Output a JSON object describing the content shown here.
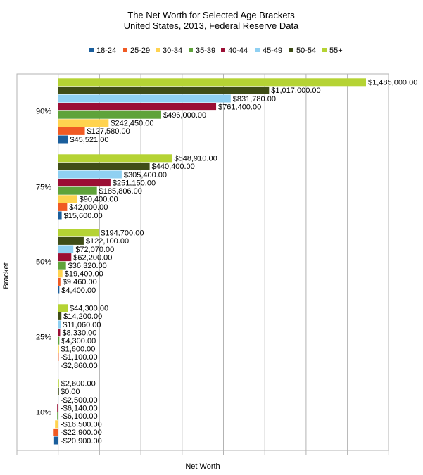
{
  "chart_data": {
    "type": "bar",
    "orientation": "horizontal",
    "title": "The Net Worth for Selected Age Brackets",
    "subtitle": "United States, 2013, Federal Reserve Data",
    "xlabel": "Net Worth",
    "ylabel": "Bracket",
    "legend_position": "top",
    "grid": true,
    "xlim": [
      -300000,
      1500000
    ],
    "categories": [
      "90%",
      "75%",
      "50%",
      "25%",
      "10%"
    ],
    "series": [
      {
        "name": "18-24",
        "color": "#1a5e9c",
        "values": [
          45521,
          15600,
          4400,
          -2860,
          -20900
        ],
        "labels": [
          "$45,521.00",
          "$15,600.00",
          "$4,400.00",
          "-$2,860.00",
          "-$20,900.00"
        ]
      },
      {
        "name": "25-29",
        "color": "#f05a23",
        "values": [
          127580,
          42000,
          9460,
          -1100,
          -22900
        ],
        "labels": [
          "$127,580.00",
          "$42,000.00",
          "$9,460.00",
          "-$1,100.00",
          "-$22,900.00"
        ]
      },
      {
        "name": "30-34",
        "color": "#ffd34f",
        "values": [
          242450,
          90400,
          19400,
          1600,
          -16500
        ],
        "labels": [
          "$242,450.00",
          "$90,400.00",
          "$19,400.00",
          "$1,600.00",
          "-$16,500.00"
        ]
      },
      {
        "name": "35-39",
        "color": "#5fa33a",
        "values": [
          496000,
          185806,
          36320,
          4300,
          -6100
        ],
        "labels": [
          "$496,000.00",
          "$185,806.00",
          "$36,320.00",
          "$4,300.00",
          "-$6,100.00"
        ]
      },
      {
        "name": "40-44",
        "color": "#9b0e34",
        "values": [
          761400,
          251150,
          62200,
          8330,
          -6140
        ],
        "labels": [
          "$761,400.00",
          "$251,150.00",
          "$62,200.00",
          "$8,330.00",
          "-$6,140.00"
        ]
      },
      {
        "name": "45-49",
        "color": "#8fd0f2",
        "values": [
          831780,
          305400,
          72070,
          11060,
          -2500
        ],
        "labels": [
          "$831,780.00",
          "$305,400.00",
          "$72,070.00",
          "$11,060.00",
          "-$2,500.00"
        ]
      },
      {
        "name": "50-54",
        "color": "#3f4d17",
        "values": [
          1017000,
          440400,
          122100,
          14200,
          0
        ],
        "labels": [
          "$1,017,000.00",
          "$440,400.00",
          "$122,100.00",
          "$14,200.00",
          "$0.00"
        ]
      },
      {
        "name": "55+",
        "color": "#b5d334",
        "values": [
          1485000,
          548910,
          194700,
          44300,
          2600
        ],
        "labels": [
          "$1,485,000.00",
          "$548,910.00",
          "$194,700.00",
          "$44,300.00",
          "$2,600.00"
        ]
      }
    ]
  }
}
